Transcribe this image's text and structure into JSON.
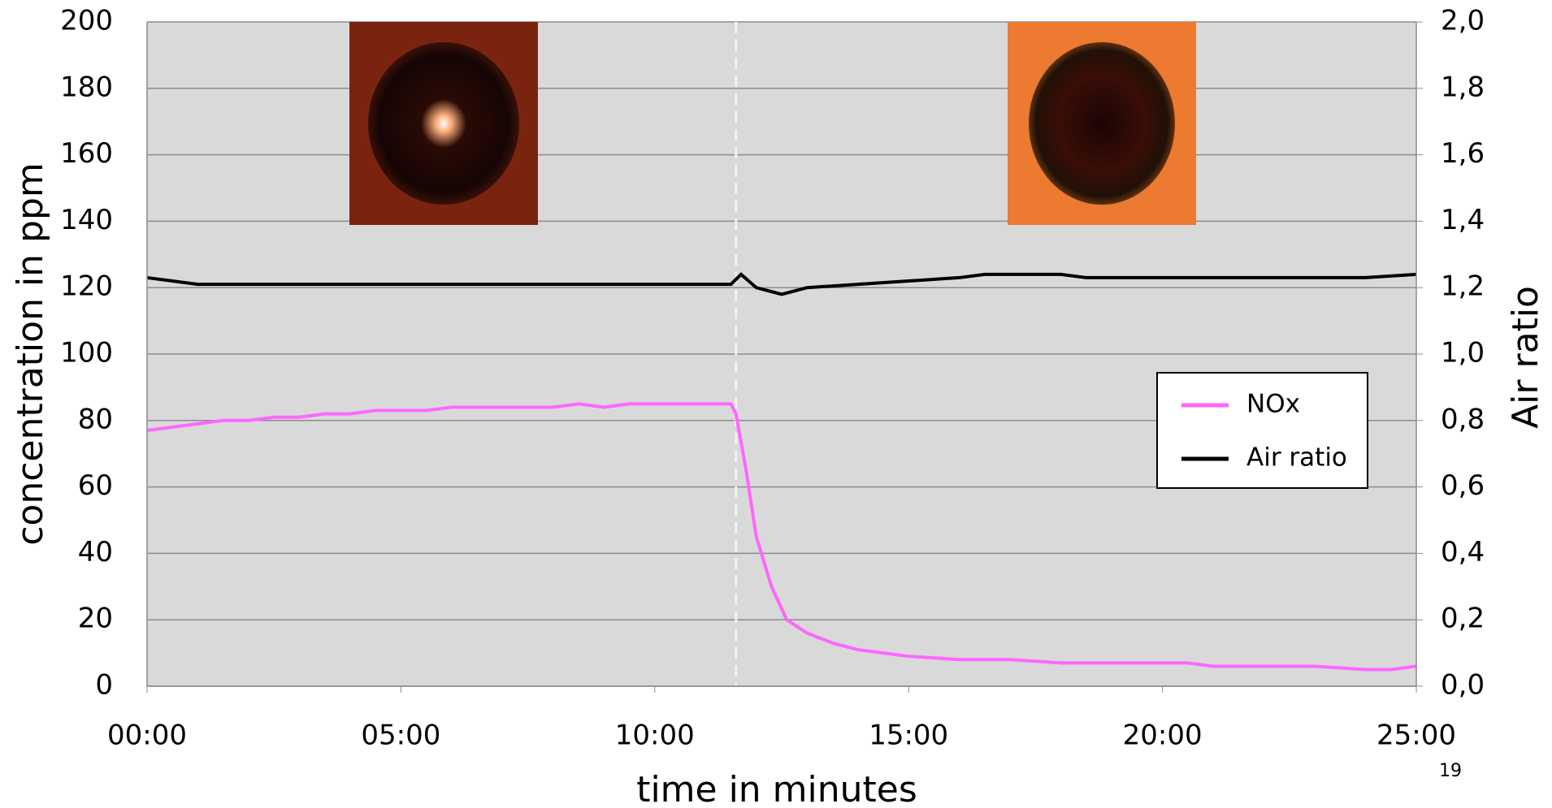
{
  "chart_data": {
    "type": "line",
    "x_label": "time in minutes",
    "y_label": "concentration in ppm",
    "y2_label": "Air ratio",
    "page_number": "19",
    "xlim": [
      0,
      25
    ],
    "xticks": [
      {
        "value": 0,
        "label": "00:00"
      },
      {
        "value": 5,
        "label": "05:00"
      },
      {
        "value": 10,
        "label": "10:00"
      },
      {
        "value": 15,
        "label": "15:00"
      },
      {
        "value": 20,
        "label": "20:00"
      },
      {
        "value": 25,
        "label": "25:00"
      }
    ],
    "ylim": [
      0,
      200
    ],
    "yticks": [
      0,
      20,
      40,
      60,
      80,
      100,
      120,
      140,
      160,
      180,
      200
    ],
    "y2lim": [
      0,
      2
    ],
    "y2ticks": [
      {
        "value": 0,
        "label": "0,0"
      },
      {
        "value": 0.2,
        "label": "0,2"
      },
      {
        "value": 0.4,
        "label": "0,4"
      },
      {
        "value": 0.6,
        "label": "0,6"
      },
      {
        "value": 0.8,
        "label": "0,8"
      },
      {
        "value": 1.0,
        "label": "1,0"
      },
      {
        "value": 1.2,
        "label": "1,2"
      },
      {
        "value": 1.4,
        "label": "1,4"
      },
      {
        "value": 1.6,
        "label": "1,6"
      },
      {
        "value": 1.8,
        "label": "1,8"
      },
      {
        "value": 2.0,
        "label": "2,0"
      }
    ],
    "grid": true,
    "vline": 11.6,
    "legend": "right",
    "series": [
      {
        "name": "NOx",
        "color": "#ff66ff",
        "x": [
          0,
          0.5,
          1,
          1.5,
          2,
          2.5,
          3,
          3.5,
          4,
          4.5,
          5,
          5.5,
          6,
          6.5,
          7,
          7.5,
          8,
          8.5,
          9,
          9.5,
          10,
          10.5,
          11,
          11.5,
          11.6,
          11.8,
          12,
          12.3,
          12.6,
          13,
          13.5,
          14,
          14.5,
          15,
          16,
          17,
          18,
          19,
          20,
          20.5,
          21,
          22,
          23,
          24,
          24.5,
          25
        ],
        "values": [
          77,
          78,
          79,
          80,
          80,
          81,
          81,
          82,
          82,
          83,
          83,
          83,
          84,
          84,
          84,
          84,
          84,
          85,
          84,
          85,
          85,
          85,
          85,
          85,
          82,
          65,
          45,
          30,
          20,
          16,
          13,
          11,
          10,
          9,
          8,
          8,
          7,
          7,
          7,
          7,
          6,
          6,
          6,
          5,
          5,
          6
        ]
      },
      {
        "name": "Air ratio",
        "color": "#000000",
        "axis": "y2",
        "x": [
          0,
          1,
          2,
          4,
          6,
          8,
          10,
          11.5,
          11.7,
          12,
          12.5,
          13,
          14,
          15,
          16,
          16.5,
          17,
          18,
          18.5,
          20,
          21,
          23,
          24,
          25
        ],
        "values": [
          1.23,
          1.21,
          1.21,
          1.21,
          1.21,
          1.21,
          1.21,
          1.21,
          1.24,
          1.2,
          1.18,
          1.2,
          1.21,
          1.22,
          1.23,
          1.24,
          1.24,
          1.24,
          1.23,
          1.23,
          1.23,
          1.23,
          1.23,
          1.24
        ]
      }
    ]
  }
}
